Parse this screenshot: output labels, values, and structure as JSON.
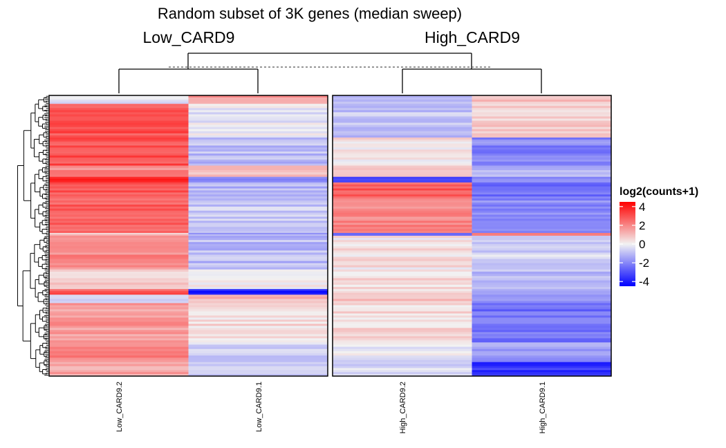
{
  "chart_data": {
    "type": "heatmap",
    "title": "Random subset of 3K genes (median sweep)",
    "column_groups": [
      {
        "name": "Low_CARD9",
        "columns": [
          "Low_CARD9.2",
          "Low_CARD9.1"
        ]
      },
      {
        "name": "High_CARD9",
        "columns": [
          "High_CARD9.2",
          "High_CARD9.1"
        ]
      }
    ],
    "columns": [
      "Low_CARD9.2",
      "Low_CARD9.1",
      "High_CARD9.2",
      "High_CARD9.1"
    ],
    "legend": {
      "title": "log2(counts+1)",
      "ticks": [
        "4",
        "2",
        "0",
        "-2",
        "-4"
      ],
      "tick_values": [
        4,
        2,
        0,
        -2,
        -4
      ],
      "range": [
        -4.5,
        4.5
      ],
      "colors": {
        "high": "#ff0000",
        "mid": "#f2f2f2",
        "low": "#0000ff"
      }
    },
    "row_dendrogram": true,
    "column_dendrogram": true,
    "row_blocks": [
      {
        "fraction": 0.03,
        "values": [
          -0.5,
          1.6,
          -0.8,
          0.8
        ]
      },
      {
        "fraction": 0.12,
        "values": [
          3.0,
          -0.2,
          -0.9,
          0.6
        ]
      },
      {
        "fraction": 0.1,
        "values": [
          3.0,
          -1.0,
          0.3,
          -2.0
        ]
      },
      {
        "fraction": 0.04,
        "values": [
          2.0,
          0.8,
          0.8,
          -1.3
        ]
      },
      {
        "fraction": 0.02,
        "values": [
          3.6,
          -2.2,
          -3.2,
          -1.6
        ]
      },
      {
        "fraction": 0.05,
        "values": [
          2.8,
          -1.2,
          2.8,
          -2.4
        ]
      },
      {
        "fraction": 0.13,
        "values": [
          2.8,
          -0.8,
          2.0,
          -2.0
        ]
      },
      {
        "fraction": 0.01,
        "values": [
          1.0,
          -1.4,
          -2.4,
          1.8
        ]
      },
      {
        "fraction": 0.12,
        "values": [
          2.0,
          -1.0,
          0.3,
          -0.6
        ]
      },
      {
        "fraction": 0.07,
        "values": [
          0.8,
          0.1,
          0.5,
          -1.0
        ]
      },
      {
        "fraction": 0.02,
        "values": [
          2.8,
          -3.8,
          0.6,
          -1.2
        ]
      },
      {
        "fraction": 0.03,
        "values": [
          -1.0,
          1.2,
          0.8,
          -1.8
        ]
      },
      {
        "fraction": 0.14,
        "values": [
          1.6,
          0.4,
          0.4,
          -2.4
        ]
      },
      {
        "fraction": 0.07,
        "values": [
          2.0,
          -0.6,
          -0.3,
          -1.6
        ]
      },
      {
        "fraction": 0.05,
        "values": [
          1.5,
          -0.5,
          -0.4,
          -3.5
        ]
      }
    ]
  }
}
